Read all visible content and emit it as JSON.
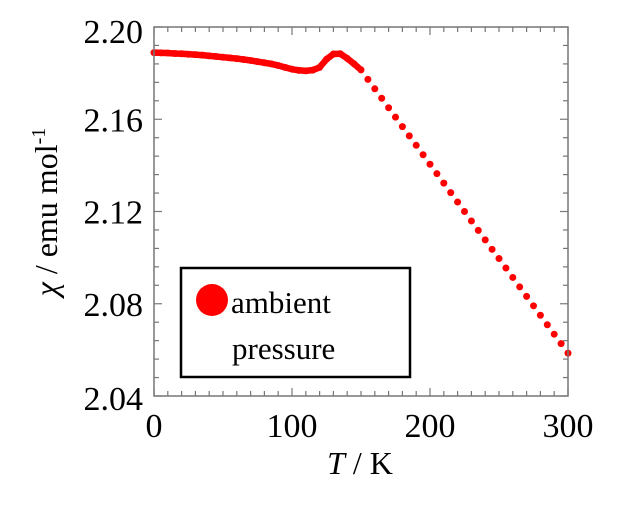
{
  "chart_data": {
    "type": "scatter",
    "title": "",
    "xlabel_italic": "T",
    "xlabel_rest": " / K",
    "ylabel_symbol": "χ",
    "ylabel_rest": " / emu mol",
    "ylabel_sup": "-1",
    "xlim": [
      0,
      300
    ],
    "ylim": [
      2.04,
      2.2
    ],
    "xticks": [
      "0",
      "100",
      "200",
      "300"
    ],
    "xtick_values": [
      0,
      100,
      200,
      300
    ],
    "yticks": [
      "2.04",
      "2.08",
      "2.12",
      "2.16",
      "2.20"
    ],
    "ytick_values": [
      2.04,
      2.08,
      2.12,
      2.16,
      2.2
    ],
    "x_minor_step": 10,
    "y_minor_step": 0.008,
    "grid": false,
    "legend": {
      "placement": "lower-left",
      "line1": "ambient",
      "line2": "pressure"
    },
    "series": [
      {
        "name": "ambient pressure",
        "color": "#ff0000",
        "x": [
          0,
          5,
          10,
          15,
          20,
          25,
          30,
          35,
          40,
          45,
          50,
          55,
          60,
          65,
          70,
          75,
          80,
          85,
          90,
          95,
          100,
          105,
          110,
          115,
          120,
          125,
          130,
          135,
          140,
          145,
          150,
          155,
          160,
          165,
          170,
          175,
          180,
          185,
          190,
          195,
          200,
          205,
          210,
          215,
          220,
          225,
          230,
          235,
          240,
          245,
          250,
          255,
          260,
          265,
          270,
          275,
          280,
          285,
          290,
          295,
          300
        ],
        "y": [
          2.1889,
          2.1888,
          2.1887,
          2.1885,
          2.1884,
          2.1882,
          2.188,
          2.1878,
          2.1875,
          2.1872,
          2.1869,
          2.1866,
          2.1863,
          2.1859,
          2.1855,
          2.185,
          2.1845,
          2.184,
          2.1833,
          2.1825,
          2.1817,
          2.1812,
          2.181,
          2.1813,
          2.1825,
          2.186,
          2.1883,
          2.1884,
          2.1864,
          2.184,
          2.1814,
          2.1773,
          2.1732,
          2.1691,
          2.165,
          2.1609,
          2.1568,
          2.1528,
          2.1487,
          2.1446,
          2.1405,
          2.1364,
          2.1323,
          2.1282,
          2.1241,
          2.12,
          2.1159,
          2.1118,
          2.1077,
          2.1036,
          2.0996,
          2.0955,
          2.0914,
          2.0873,
          2.0832,
          2.0791,
          2.075,
          2.0709,
          2.0668,
          2.0627,
          2.0586
        ]
      }
    ]
  }
}
